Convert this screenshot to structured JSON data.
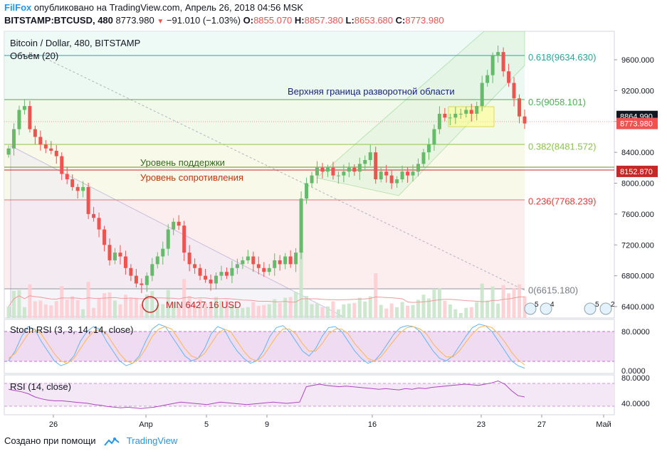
{
  "header": {
    "brand": "FilFox",
    "published_text": "опубликовано на TradingView.com, Апрель 26, 2018 04:56 MSK",
    "symbol": "BITSTAMP:BTCUSD, 480",
    "last": "8773.980",
    "change": "−91.010 (−1.03%)",
    "o_label": "O:",
    "o_value": "8855.070",
    "h_label": "H:",
    "h_value": "8857.380",
    "l_label": "L:",
    "l_value": "8653.680",
    "c_label": "C:",
    "c_value": "8773.980"
  },
  "legend": {
    "main": "Bitcoin / Dollar, 480, BITSTAMP",
    "volume": "Объём (20)"
  },
  "annotations": {
    "upper_bound": "Верхняя граница разворотной области",
    "support": "Уровень поддержки",
    "resistance": "Уровень сопротивления",
    "min_label": "MIN 6427.16 USD"
  },
  "fib_labels": [
    {
      "text": "0.618(9634.630)",
      "price": 9634.63,
      "color": "#26a69a"
    },
    {
      "text": "0.5(9058.101)",
      "price": 9058.101,
      "color": "#4caf50"
    },
    {
      "text": "0.382(8481.572)",
      "price": 8481.572,
      "color": "#8bc34a"
    },
    {
      "text": "0.236(7768.239)",
      "price": 7768.239,
      "color": "#e53935"
    },
    {
      "text": "0(6615.180)",
      "price": 6615.18,
      "color": "#787b86"
    }
  ],
  "price_badges": [
    {
      "text": "8864.990",
      "price": 8864.99,
      "color": "#131722"
    },
    {
      "text": "8773.980",
      "price": 8773.98,
      "color": "#ef5350"
    },
    {
      "text": "8152.870",
      "price": 8152.87,
      "color": "#c62828"
    }
  ],
  "event_badges": [
    "5",
    "4",
    "5",
    "2"
  ],
  "stoch": {
    "label": "Stoch RSI (3, 3, 14, 14, close)",
    "ticks": [
      "80.0000",
      "0.0000"
    ]
  },
  "rsi": {
    "label": "RSI (14, close)",
    "ticks": [
      "80.0000",
      "40.0000"
    ]
  },
  "footer": {
    "made_with": "Создано при помощи",
    "tradingview": "TradingView"
  },
  "chart_data": {
    "type": "candlestick",
    "y_axis_ticks": [
      "9600.000",
      "9200.000",
      "8800.000",
      "8400.000",
      "8000.000",
      "7600.000",
      "7200.000",
      "6800.000",
      "6400.000"
    ],
    "ylim": [
      6250,
      9950
    ],
    "x_ticks": [
      "26",
      "Апр",
      "5",
      "9",
      "16",
      "23",
      "27",
      "Май"
    ],
    "closes": [
      8450,
      8700,
      8950,
      9000,
      8700,
      8600,
      8500,
      8450,
      8420,
      8350,
      8120,
      8050,
      7950,
      7900,
      7950,
      7600,
      7550,
      7400,
      7200,
      7000,
      7100,
      7050,
      6900,
      6800,
      6700,
      6680,
      6800,
      6950,
      7050,
      7150,
      7400,
      7500,
      7450,
      7100,
      6950,
      6900,
      6800,
      6750,
      6700,
      6800,
      6850,
      6800,
      6900,
      6950,
      7000,
      7050,
      6950,
      6900,
      6850,
      6900,
      7000,
      6950,
      7050,
      6950,
      7100,
      7800,
      8000,
      8100,
      8200,
      8150,
      8200,
      8100,
      8100,
      8150,
      8200,
      8150,
      8250,
      8300,
      8400,
      8050,
      8150,
      8100,
      8000,
      8050,
      8150,
      8100,
      8150,
      8250,
      8400,
      8500,
      8700,
      8900,
      8850,
      8850,
      8900,
      8900,
      8950,
      8900,
      9000,
      9300,
      9400,
      9650,
      9700,
      9450,
      9300,
      9100,
      8864.99,
      8773.98
    ],
    "volume_ma_period": 20,
    "stoch_k": [
      20,
      40,
      70,
      90,
      85,
      60,
      40,
      20,
      10,
      15,
      30,
      60,
      80,
      90,
      85,
      60,
      40,
      20,
      10,
      15,
      30,
      60,
      85,
      95,
      90,
      70,
      50,
      30,
      20,
      25,
      45,
      75,
      90,
      85,
      60,
      40,
      25,
      15,
      20,
      40,
      70,
      88,
      92,
      80,
      60,
      40,
      30,
      45,
      70,
      88,
      90,
      80,
      60,
      40,
      25,
      15,
      20,
      35,
      55,
      75,
      88,
      92,
      90,
      80,
      60,
      40,
      25,
      20,
      30,
      50,
      70,
      88,
      95,
      92,
      80,
      60,
      40,
      20,
      10,
      5
    ],
    "stoch_d": [
      25,
      35,
      55,
      75,
      85,
      75,
      55,
      35,
      20,
      15,
      25,
      45,
      65,
      80,
      85,
      75,
      55,
      35,
      20,
      15,
      25,
      45,
      70,
      85,
      90,
      85,
      65,
      45,
      30,
      25,
      35,
      55,
      75,
      85,
      80,
      60,
      40,
      25,
      20,
      30,
      50,
      70,
      85,
      85,
      75,
      55,
      40,
      40,
      55,
      75,
      85,
      85,
      75,
      55,
      40,
      25,
      20,
      28,
      45,
      62,
      78,
      88,
      90,
      85,
      75,
      55,
      40,
      28,
      28,
      40,
      58,
      75,
      88,
      92,
      88,
      75,
      58,
      38,
      22,
      12
    ],
    "rsi_values": [
      62,
      60,
      58,
      55,
      50,
      47,
      45,
      44,
      44,
      43,
      42,
      41,
      40,
      38,
      37,
      35,
      34,
      33,
      34,
      33,
      32,
      33,
      34,
      36,
      38,
      40,
      42,
      41,
      40,
      39,
      38,
      40,
      42,
      41,
      40,
      39,
      38,
      39,
      40,
      41,
      42,
      41,
      40,
      41,
      42,
      66,
      68,
      70,
      68,
      67,
      66,
      67,
      66,
      65,
      64,
      63,
      62,
      63,
      62,
      61,
      63,
      62,
      64,
      63,
      65,
      66,
      67,
      68,
      69,
      70,
      69,
      68,
      70,
      72,
      75,
      70,
      60,
      52,
      50
    ]
  }
}
